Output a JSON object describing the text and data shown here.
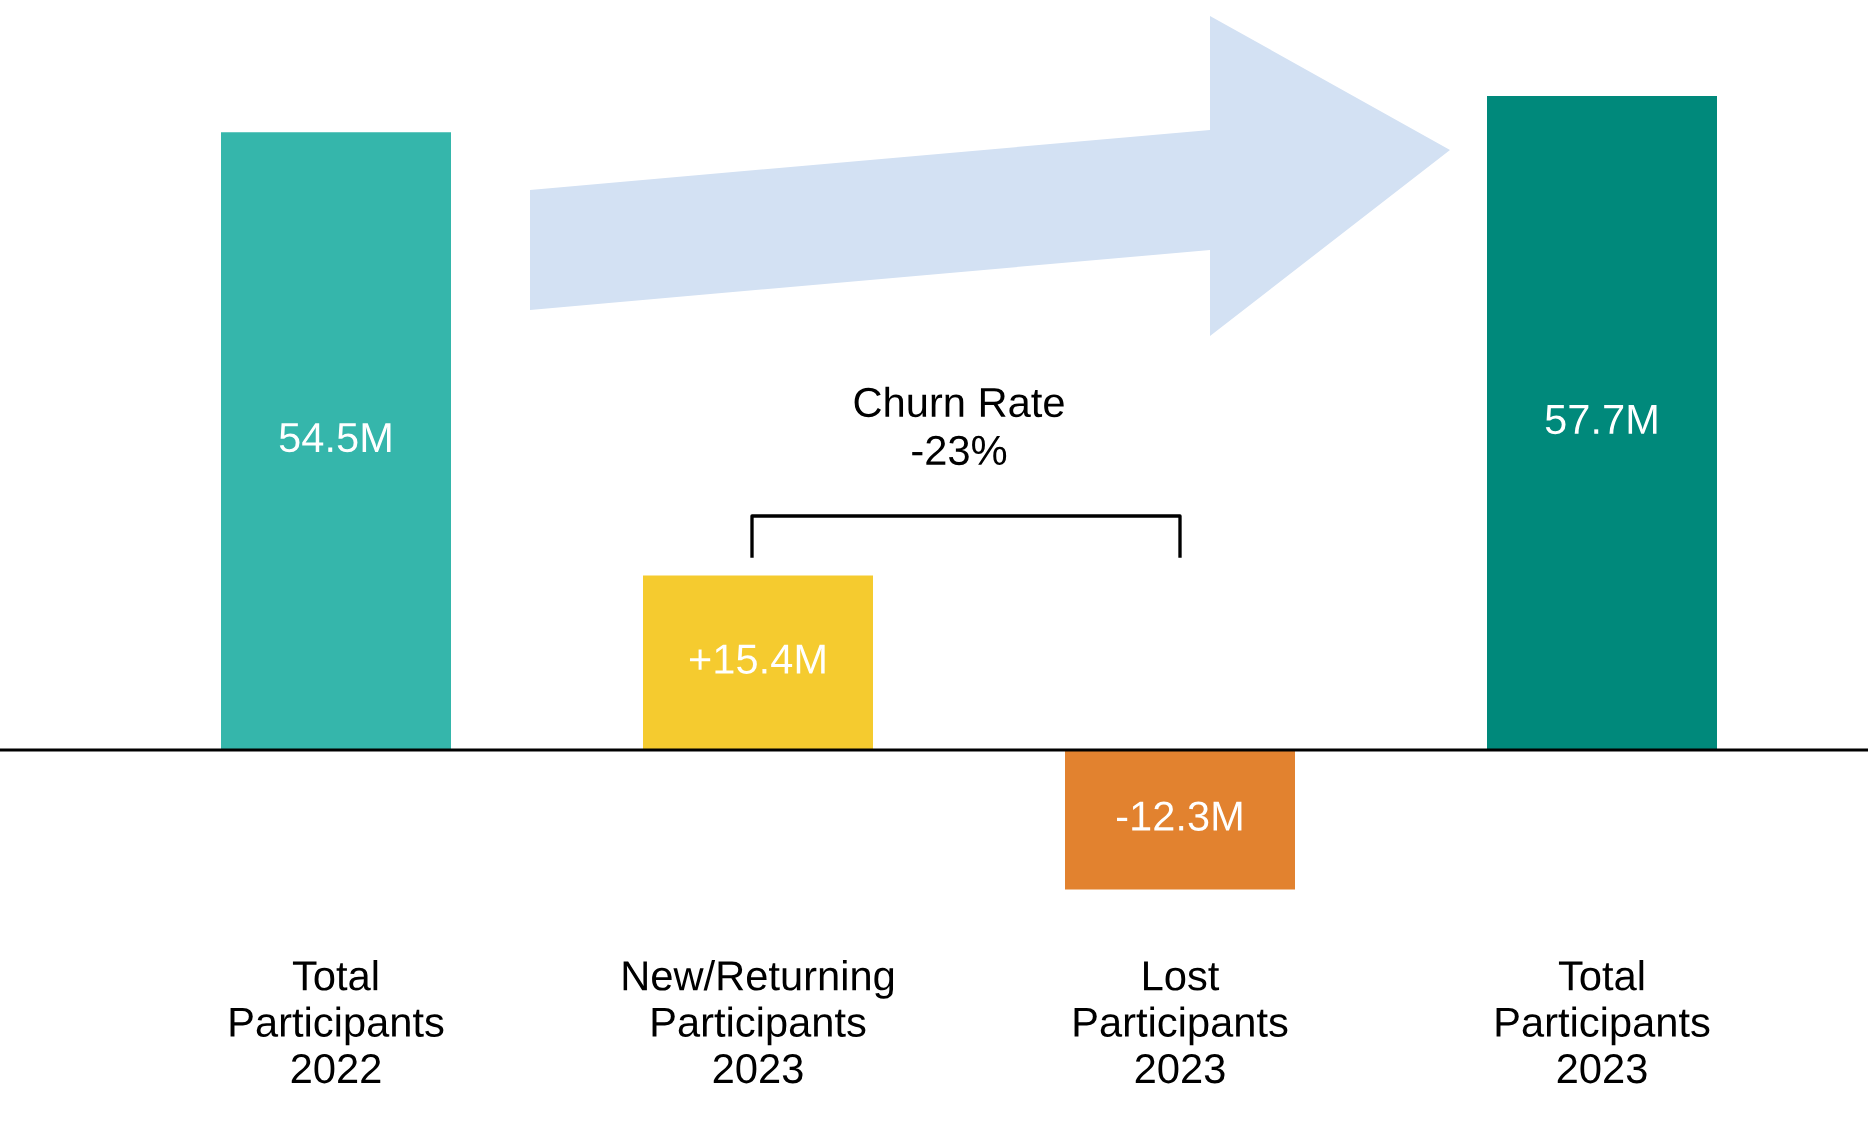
{
  "chart_data": {
    "type": "bar",
    "categories": [
      "Total\nParticipants\n2022",
      "New/Returning\nParticipants\n2023",
      "Lost\nParticipants\n2023",
      "Total\nParticipants\n2023"
    ],
    "values": [
      54.5,
      15.4,
      -12.3,
      57.7
    ],
    "colors": [
      "#35b6ab",
      "#f5cb2f",
      "#e2822f",
      "#00897b"
    ],
    "value_labels": [
      "54.5M",
      "+15.4M",
      "-12.3M",
      "57.7M"
    ],
    "annotations": [
      "Churn Rate\n-23%"
    ],
    "legend": false
  }
}
